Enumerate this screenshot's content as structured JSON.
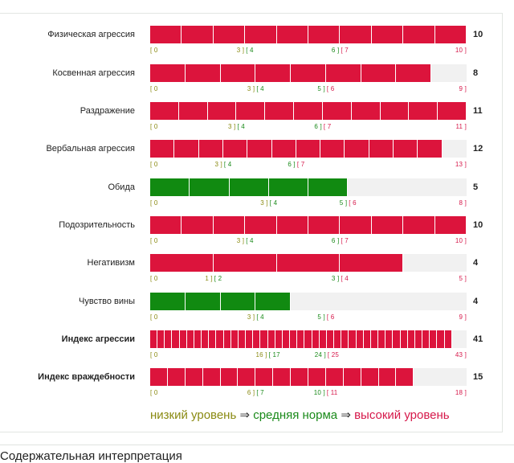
{
  "colors": {
    "low": "#8a8a12",
    "mid": "#1a8a1a",
    "high": "#d6184a",
    "bar_red": "#dc143c",
    "bar_green": "#118a11",
    "track": "#f1f1f1"
  },
  "rows": [
    {
      "label": "Физическая агрессия",
      "score": "10",
      "score_value": 10,
      "max": 10,
      "bold": false,
      "color": "red",
      "ticks": [
        {
          "v": 0,
          "text": "[ 0",
          "c": "low"
        },
        {
          "v": 3,
          "text": "3 ] [ 4",
          "split": [
            "3 ]",
            "[ 4"
          ],
          "c": "lowmid"
        },
        {
          "v": 6,
          "text": "6 ] [ 7",
          "split": [
            "6 ]",
            "[ 7"
          ],
          "c": "midhigh"
        },
        {
          "v": 10,
          "text": "10 ]",
          "c": "high"
        }
      ]
    },
    {
      "label": "Косвенная агрессия",
      "score": "8",
      "score_value": 8,
      "max": 9,
      "bold": false,
      "color": "red",
      "ticks": [
        {
          "v": 0,
          "text": "[ 0",
          "c": "low"
        },
        {
          "v": 3,
          "text": "3 ] [ 4",
          "split": [
            "3 ]",
            "[ 4"
          ],
          "c": "lowmid"
        },
        {
          "v": 5,
          "text": "5 ] [ 6",
          "split": [
            "5 ]",
            "[ 6"
          ],
          "c": "midhigh"
        },
        {
          "v": 9,
          "text": "9 ]",
          "c": "high"
        }
      ]
    },
    {
      "label": "Раздражение",
      "score": "11",
      "score_value": 11,
      "max": 11,
      "bold": false,
      "color": "red",
      "ticks": [
        {
          "v": 0,
          "text": "[ 0",
          "c": "low"
        },
        {
          "v": 3,
          "text": "3 ] [ 4",
          "split": [
            "3 ]",
            "[ 4"
          ],
          "c": "lowmid"
        },
        {
          "v": 6,
          "text": "6 ] [ 7",
          "split": [
            "6 ]",
            "[ 7"
          ],
          "c": "midhigh"
        },
        {
          "v": 11,
          "text": "11 ]",
          "c": "high"
        }
      ]
    },
    {
      "label": "Вербальная агрессия",
      "score": "12",
      "score_value": 12,
      "max": 13,
      "bold": false,
      "color": "red",
      "ticks": [
        {
          "v": 0,
          "text": "[ 0",
          "c": "low"
        },
        {
          "v": 3,
          "text": "3 ] [ 4",
          "split": [
            "3 ]",
            "[ 4"
          ],
          "c": "lowmid"
        },
        {
          "v": 6,
          "text": "6 ] [ 7",
          "split": [
            "6 ]",
            "[ 7"
          ],
          "c": "midhigh"
        },
        {
          "v": 13,
          "text": "13 ]",
          "c": "high"
        }
      ]
    },
    {
      "label": "Обида",
      "score": "5",
      "score_value": 5,
      "max": 8,
      "bold": false,
      "color": "green",
      "ticks": [
        {
          "v": 0,
          "text": "[ 0",
          "c": "low"
        },
        {
          "v": 3,
          "text": "3 ] [ 4",
          "split": [
            "3 ]",
            "[ 4"
          ],
          "c": "lowmid"
        },
        {
          "v": 5,
          "text": "5 ] [ 6",
          "split": [
            "5 ]",
            "[ 6"
          ],
          "c": "midhigh"
        },
        {
          "v": 8,
          "text": "8 ]",
          "c": "high"
        }
      ]
    },
    {
      "label": "Подозрительность",
      "score": "10",
      "score_value": 10,
      "max": 10,
      "bold": false,
      "color": "red",
      "ticks": [
        {
          "v": 0,
          "text": "[ 0",
          "c": "low"
        },
        {
          "v": 3,
          "text": "3 ] [ 4",
          "split": [
            "3 ]",
            "[ 4"
          ],
          "c": "lowmid"
        },
        {
          "v": 6,
          "text": "6 ] [ 7",
          "split": [
            "6 ]",
            "[ 7"
          ],
          "c": "midhigh"
        },
        {
          "v": 10,
          "text": "10 ]",
          "c": "high"
        }
      ]
    },
    {
      "label": "Негативизм",
      "score": "4",
      "score_value": 4,
      "max": 5,
      "bold": false,
      "color": "red",
      "ticks": [
        {
          "v": 0,
          "text": "[ 0",
          "c": "low"
        },
        {
          "v": 1,
          "text": "1 ] [ 2",
          "split": [
            "1 ]",
            "[ 2"
          ],
          "c": "lowmid"
        },
        {
          "v": 3,
          "text": "3 ] [ 4",
          "split": [
            "3 ]",
            "[ 4"
          ],
          "c": "midhigh"
        },
        {
          "v": 5,
          "text": "5 ]",
          "c": "high"
        }
      ]
    },
    {
      "label": "Чувство вины",
      "score": "4",
      "score_value": 4,
      "max": 9,
      "bold": false,
      "color": "green",
      "ticks": [
        {
          "v": 0,
          "text": "[ 0",
          "c": "low"
        },
        {
          "v": 3,
          "text": "3 ] [ 4",
          "split": [
            "3 ]",
            "[ 4"
          ],
          "c": "lowmid"
        },
        {
          "v": 5,
          "text": "5 ] [ 6",
          "split": [
            "5 ]",
            "[ 6"
          ],
          "c": "midhigh"
        },
        {
          "v": 9,
          "text": "9 ]",
          "c": "high"
        }
      ]
    },
    {
      "label": "Индекс агрессии",
      "score": "41",
      "score_value": 41,
      "max": 43,
      "bold": true,
      "color": "red",
      "ticks": [
        {
          "v": 0,
          "text": "[ 0",
          "c": "low"
        },
        {
          "v": 16,
          "text": "16 ] [ 17",
          "split": [
            "16 ]",
            "[ 17"
          ],
          "c": "lowmid"
        },
        {
          "v": 24,
          "text": "24 ] [ 25",
          "split": [
            "24 ]",
            "[ 25"
          ],
          "c": "midhigh"
        },
        {
          "v": 43,
          "text": "43 ]",
          "c": "high"
        }
      ]
    },
    {
      "label": "Индекс враждебности",
      "score": "15",
      "score_value": 15,
      "max": 18,
      "bold": true,
      "color": "red",
      "ticks": [
        {
          "v": 0,
          "text": "[ 0",
          "c": "low"
        },
        {
          "v": 6,
          "text": "6 ] [ 7",
          "split": [
            "6 ]",
            "[ 7"
          ],
          "c": "lowmid"
        },
        {
          "v": 10,
          "text": "10 ] [ 11",
          "split": [
            "10 ]",
            "[ 11"
          ],
          "c": "midhigh"
        },
        {
          "v": 18,
          "text": "18 ]",
          "c": "high"
        }
      ]
    }
  ],
  "legend": {
    "low": "низкий уровень",
    "arrow": "⇒",
    "mid": "средняя норма",
    "high": "высокий уровень"
  },
  "footer": {
    "title": "Содержательная интерпретация"
  }
}
